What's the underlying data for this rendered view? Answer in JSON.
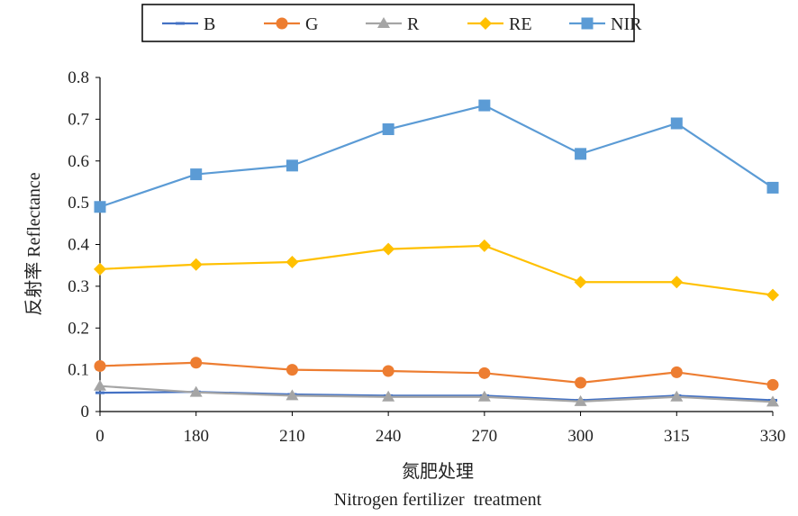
{
  "chart_data": {
    "type": "line",
    "categories": [
      "0",
      "180",
      "210",
      "240",
      "270",
      "300",
      "315",
      "330"
    ],
    "series": [
      {
        "name": "B",
        "color": "#4472C4",
        "marker": "dash",
        "values": [
          0.045,
          0.047,
          0.041,
          0.038,
          0.038,
          0.027,
          0.038,
          0.027
        ]
      },
      {
        "name": "G",
        "color": "#ED7D31",
        "marker": "circle",
        "values": [
          0.109,
          0.117,
          0.1,
          0.097,
          0.092,
          0.069,
          0.094,
          0.064
        ]
      },
      {
        "name": "R",
        "color": "#A5A5A5",
        "marker": "triangle",
        "values": [
          0.061,
          0.046,
          0.038,
          0.035,
          0.035,
          0.024,
          0.035,
          0.023
        ]
      },
      {
        "name": "RE",
        "color": "#FFC000",
        "marker": "diamond",
        "values": [
          0.341,
          0.352,
          0.358,
          0.389,
          0.397,
          0.31,
          0.31,
          0.279
        ]
      },
      {
        "name": "NIR",
        "color": "#5B9BD5",
        "marker": "square",
        "values": [
          0.49,
          0.568,
          0.589,
          0.676,
          0.733,
          0.617,
          0.69,
          0.536
        ]
      }
    ],
    "ylim": [
      0,
      0.8
    ],
    "yticks": [
      "0",
      "0.1",
      "0.2",
      "0.3",
      "0.4",
      "0.5",
      "0.6",
      "0.7",
      "0.8"
    ],
    "ylabel": "反射率 Reflectance",
    "xlabel_cn": "氮肥处理",
    "xlabel_en": "Nitrogen fertilizer  treatment",
    "legend_position": "top",
    "grid": false
  }
}
